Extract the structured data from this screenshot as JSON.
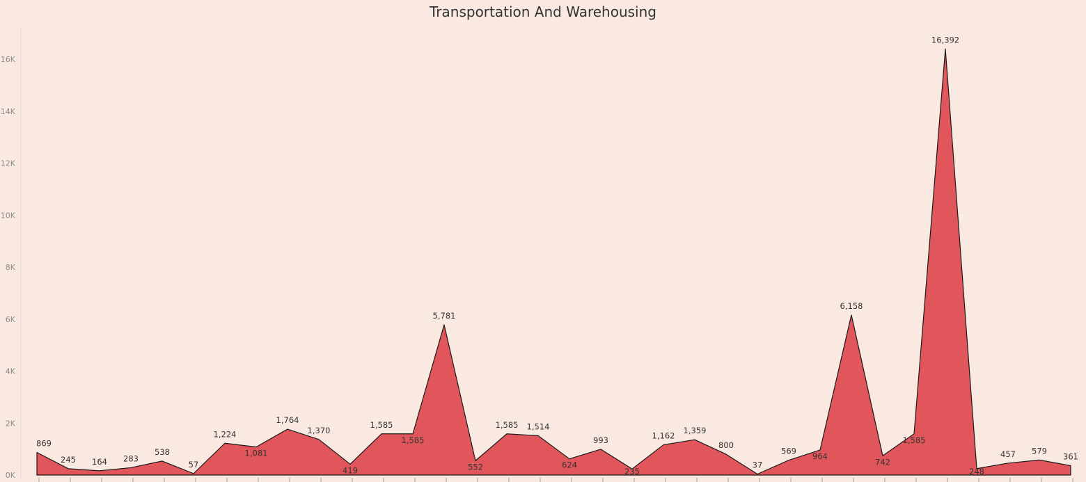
{
  "chart_data": {
    "type": "area",
    "title": "Transportation And Warehousing",
    "xlabel": "",
    "ylabel": "",
    "ylim": [
      0,
      17000
    ],
    "y_ticks": [
      {
        "value": 0,
        "label": "0K"
      },
      {
        "value": 2000,
        "label": "2K"
      },
      {
        "value": 4000,
        "label": "4K"
      },
      {
        "value": 6000,
        "label": "6K"
      },
      {
        "value": 8000,
        "label": "8K"
      },
      {
        "value": 10000,
        "label": "10K"
      },
      {
        "value": 12000,
        "label": "12K"
      },
      {
        "value": 14000,
        "label": "14K"
      },
      {
        "value": 16000,
        "label": "16K"
      }
    ],
    "grid": true,
    "series": [
      {
        "name": "Transportation And Warehousing",
        "color": "#e0565b",
        "values": [
          869,
          245,
          164,
          283,
          538,
          57,
          1224,
          1081,
          1764,
          1370,
          419,
          1585,
          1585,
          5781,
          552,
          1585,
          1514,
          624,
          993,
          235,
          1162,
          1359,
          800,
          37,
          569,
          964,
          6158,
          742,
          1585,
          16392,
          248,
          457,
          579,
          361
        ],
        "labels": [
          "869",
          "245",
          "164",
          "283",
          "538",
          "57",
          "1,224",
          "1,081",
          "1,764",
          "1,370",
          "419",
          "1,585",
          "1,585",
          "5,781",
          "552",
          "1,585",
          "1,514",
          "624",
          "993",
          "235",
          "1,162",
          "1,359",
          "800",
          "37",
          "569",
          "964",
          "6,158",
          "742",
          "1,585",
          "16,392",
          "248",
          "457",
          "579",
          "361"
        ],
        "label_positions": [
          "above",
          "above",
          "above",
          "above",
          "above",
          "above",
          "above",
          "below",
          "above",
          "above",
          "below",
          "above",
          "below",
          "above",
          "below",
          "above",
          "above",
          "below",
          "above",
          "below",
          "above",
          "above",
          "above",
          "above",
          "above",
          "below",
          "above",
          "below",
          "below",
          "above",
          "below",
          "above",
          "above",
          "above"
        ]
      }
    ],
    "colors": {
      "background": "#f9e9e1",
      "area_fill": "#e0565b",
      "outline": "#1a1a1a",
      "grid": "#fbeee8",
      "axis_text": "#8c8c8c",
      "label_text": "#333333"
    }
  }
}
